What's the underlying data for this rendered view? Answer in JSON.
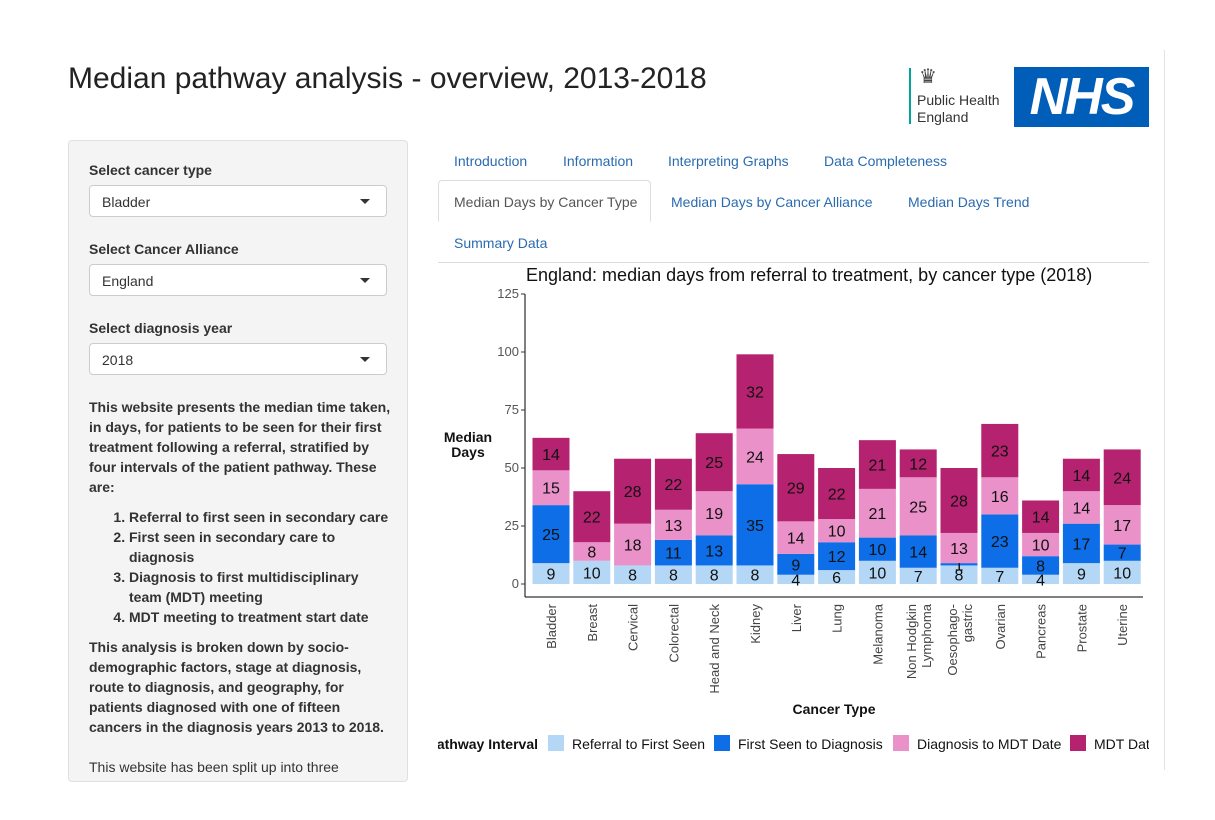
{
  "header": {
    "title": "Median pathway analysis - overview, 2013-2018",
    "phe_logo": "Public Health England",
    "phe_line1": "Public Health",
    "phe_line2": "England",
    "nhs_logo": "NHS"
  },
  "sidebar": {
    "cancer_label": "Select cancer type",
    "cancer_value": "Bladder",
    "alliance_label": "Select Cancer Alliance",
    "alliance_value": "England",
    "year_label": "Select diagnosis year",
    "year_value": "2018",
    "intro": "This website presents the median time taken, in days, for patients to be seen for their first treatment following a referral, stratified by four intervals of the patient pathway. These are:",
    "steps": [
      "Referral to first seen in secondary care",
      "First seen in secondary care to diagnosis",
      "Diagnosis to first multidisciplinary team (MDT) meeting",
      "MDT meeting to treatment start date"
    ],
    "analysis": "This analysis is broken down by socio-demographic factors, stage at diagnosis, route to diagnosis, and geography, for patients diagnosed with one of fifteen cancers in the diagnosis years 2013 to 2018.",
    "split": "This website has been split up into three"
  },
  "tabs": [
    "Introduction",
    "Information",
    "Interpreting Graphs",
    "Data Completeness",
    "Median Days by Cancer Type",
    "Median Days by Cancer Alliance",
    "Median Days Trend",
    "Summary Data"
  ],
  "active_tab": "Median Days by Cancer Type",
  "chart_data": {
    "type": "bar",
    "stacked": true,
    "title": "England: median days from referral to treatment, by cancer type (2018)",
    "xlabel": "Cancer Type",
    "ylabel": "Median Days",
    "ylim": [
      0,
      125
    ],
    "yticks": [
      0,
      25,
      50,
      75,
      100,
      125
    ],
    "categories": [
      "Bladder",
      "Breast",
      "Cervical",
      "Colorectal",
      "Head and Neck",
      "Kidney",
      "Liver",
      "Lung",
      "Melanoma",
      "Non Hodgkin Lymphoma",
      "Oesophago-gastric",
      "Ovarian",
      "Pancreas",
      "Prostate",
      "Uterine"
    ],
    "legend_title": "Pathway Interval",
    "legend_position": "bottom",
    "series": [
      {
        "name": "Referral to First Seen",
        "color": "#b3d7f5",
        "values": [
          9,
          10,
          8,
          8,
          8,
          8,
          4,
          6,
          10,
          7,
          8,
          7,
          4,
          9,
          10
        ]
      },
      {
        "name": "First Seen to Diagnosis",
        "color": "#0d6ee8",
        "values": [
          25,
          0,
          0,
          11,
          13,
          35,
          9,
          12,
          10,
          14,
          1,
          23,
          8,
          17,
          7
        ]
      },
      {
        "name": "Diagnosis to MDT Date",
        "color": "#e991c8",
        "values": [
          15,
          8,
          18,
          13,
          19,
          24,
          14,
          10,
          21,
          25,
          13,
          16,
          10,
          14,
          17
        ]
      },
      {
        "name": "MDT Date to Treatment",
        "color": "#b5226f",
        "values": [
          14,
          22,
          28,
          22,
          25,
          32,
          29,
          22,
          21,
          12,
          28,
          23,
          14,
          14,
          24
        ]
      }
    ],
    "grid": false
  }
}
